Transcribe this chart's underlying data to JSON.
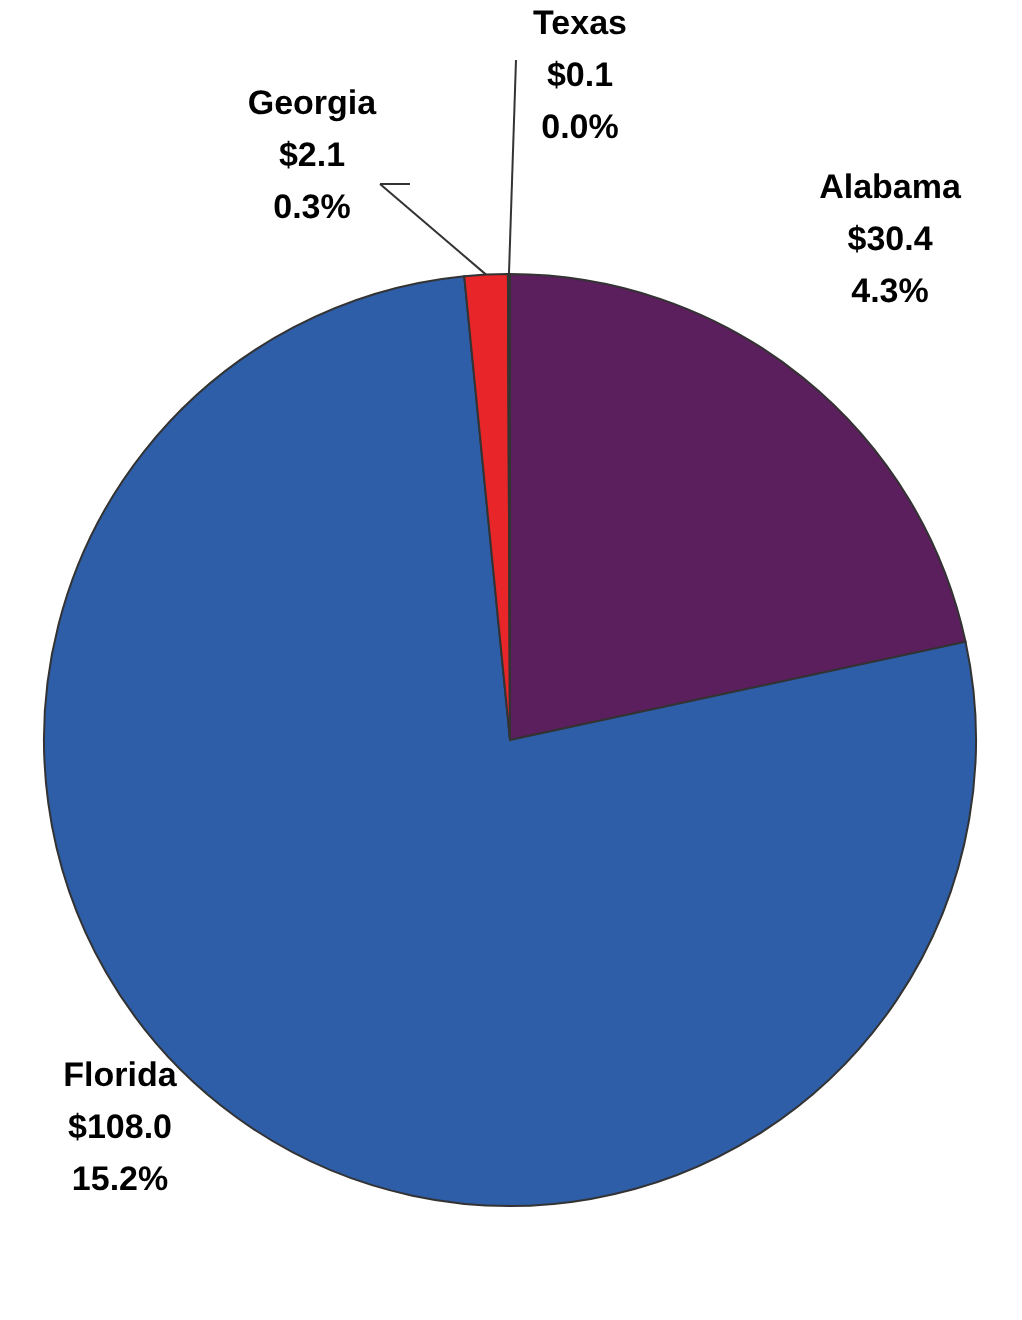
{
  "chart_data": {
    "type": "pie",
    "categories": [
      "Alabama",
      "Florida",
      "Georgia",
      "Texas"
    ],
    "values": [
      30.4,
      108.0,
      2.1,
      0.1
    ],
    "colors": [
      "#5c1f5e",
      "#2e5ea8",
      "#e8262a",
      "#3a7a3a"
    ],
    "value_labels": [
      "$30.4\n4.3%",
      "$108.0\n15.2%",
      "$2.1\n0.3%",
      "$0.1\n0.0%"
    ]
  }
}
